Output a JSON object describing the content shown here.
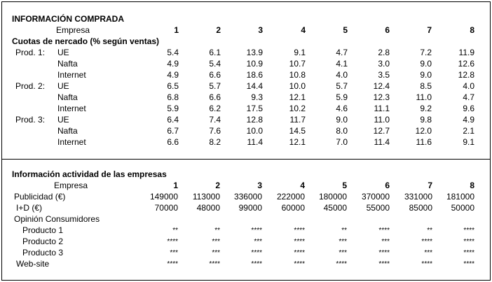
{
  "section1": {
    "title": "INFORMACIÓN COMPRADA",
    "company_label": "Empresa",
    "companies": [
      "1",
      "2",
      "3",
      "4",
      "5",
      "6",
      "7",
      "8"
    ],
    "subtitle": "Cuotas de nercado (% según ventas)",
    "products": [
      {
        "label": "Prod. 1:",
        "rows": [
          {
            "region": "UE",
            "values": [
              "5.4",
              "6.1",
              "13.9",
              "9.1",
              "4.7",
              "2.8",
              "7.2",
              "11.9"
            ]
          },
          {
            "region": "Nafta",
            "values": [
              "4.9",
              "5.4",
              "10.9",
              "10.7",
              "4.1",
              "3.0",
              "9.0",
              "12.6"
            ]
          },
          {
            "region": "Internet",
            "values": [
              "4.9",
              "6.6",
              "18.6",
              "10.8",
              "4.0",
              "3.5",
              "9.0",
              "12.8"
            ]
          }
        ]
      },
      {
        "label": "Prod. 2:",
        "rows": [
          {
            "region": "UE",
            "values": [
              "6.5",
              "5.7",
              "14.4",
              "10.0",
              "5.7",
              "12.4",
              "8.5",
              "4.0"
            ]
          },
          {
            "region": "Nafta",
            "values": [
              "6.8",
              "6.6",
              "9.3",
              "12.1",
              "5.9",
              "12.3",
              "11.0",
              "4.7"
            ]
          },
          {
            "region": "Internet",
            "values": [
              "5.9",
              "6.2",
              "17.5",
              "10.2",
              "4.6",
              "11.1",
              "9.2",
              "9.6"
            ]
          }
        ]
      },
      {
        "label": "Prod. 3:",
        "rows": [
          {
            "region": "UE",
            "values": [
              "6.4",
              "7.4",
              "12.8",
              "11.7",
              "9.0",
              "11.0",
              "9.8",
              "4.9"
            ]
          },
          {
            "region": "Nafta",
            "values": [
              "6.7",
              "7.6",
              "10.0",
              "14.5",
              "8.0",
              "12.7",
              "12.0",
              "2.1"
            ]
          },
          {
            "region": "Internet",
            "values": [
              "6.6",
              "8.2",
              "11.4",
              "12.1",
              "7.0",
              "11.4",
              "11.6",
              "9.1"
            ]
          }
        ]
      }
    ]
  },
  "section2": {
    "title": "Información actividad de las empresas",
    "company_label": "Empresa",
    "companies": [
      "1",
      "2",
      "3",
      "4",
      "5",
      "6",
      "7",
      "8"
    ],
    "publicidad": {
      "label": "Publicidad (€)",
      "values": [
        "149000",
        "113000",
        "336000",
        "222000",
        "180000",
        "370000",
        "331000",
        "181000"
      ]
    },
    "id": {
      "label": "I+D (€)",
      "values": [
        "70000",
        "48000",
        "99000",
        "60000",
        "45000",
        "55000",
        "85000",
        "50000"
      ]
    },
    "opinion_label": "Opinión Consumidores",
    "opinion_rows": [
      {
        "label": "Producto 1",
        "values": [
          "**",
          "**",
          "****",
          "****",
          "**",
          "****",
          "**",
          "****"
        ]
      },
      {
        "label": "Producto 2",
        "values": [
          "****",
          "***",
          "***",
          "****",
          "***",
          "***",
          "****",
          "****"
        ]
      },
      {
        "label": "Producto 3",
        "values": [
          "***",
          "***",
          "****",
          "****",
          "***",
          "****",
          "***",
          "****"
        ]
      }
    ],
    "website": {
      "label": "Web-site",
      "values": [
        "****",
        "****",
        "****",
        "****",
        "****",
        "****",
        "****",
        "****"
      ]
    }
  }
}
